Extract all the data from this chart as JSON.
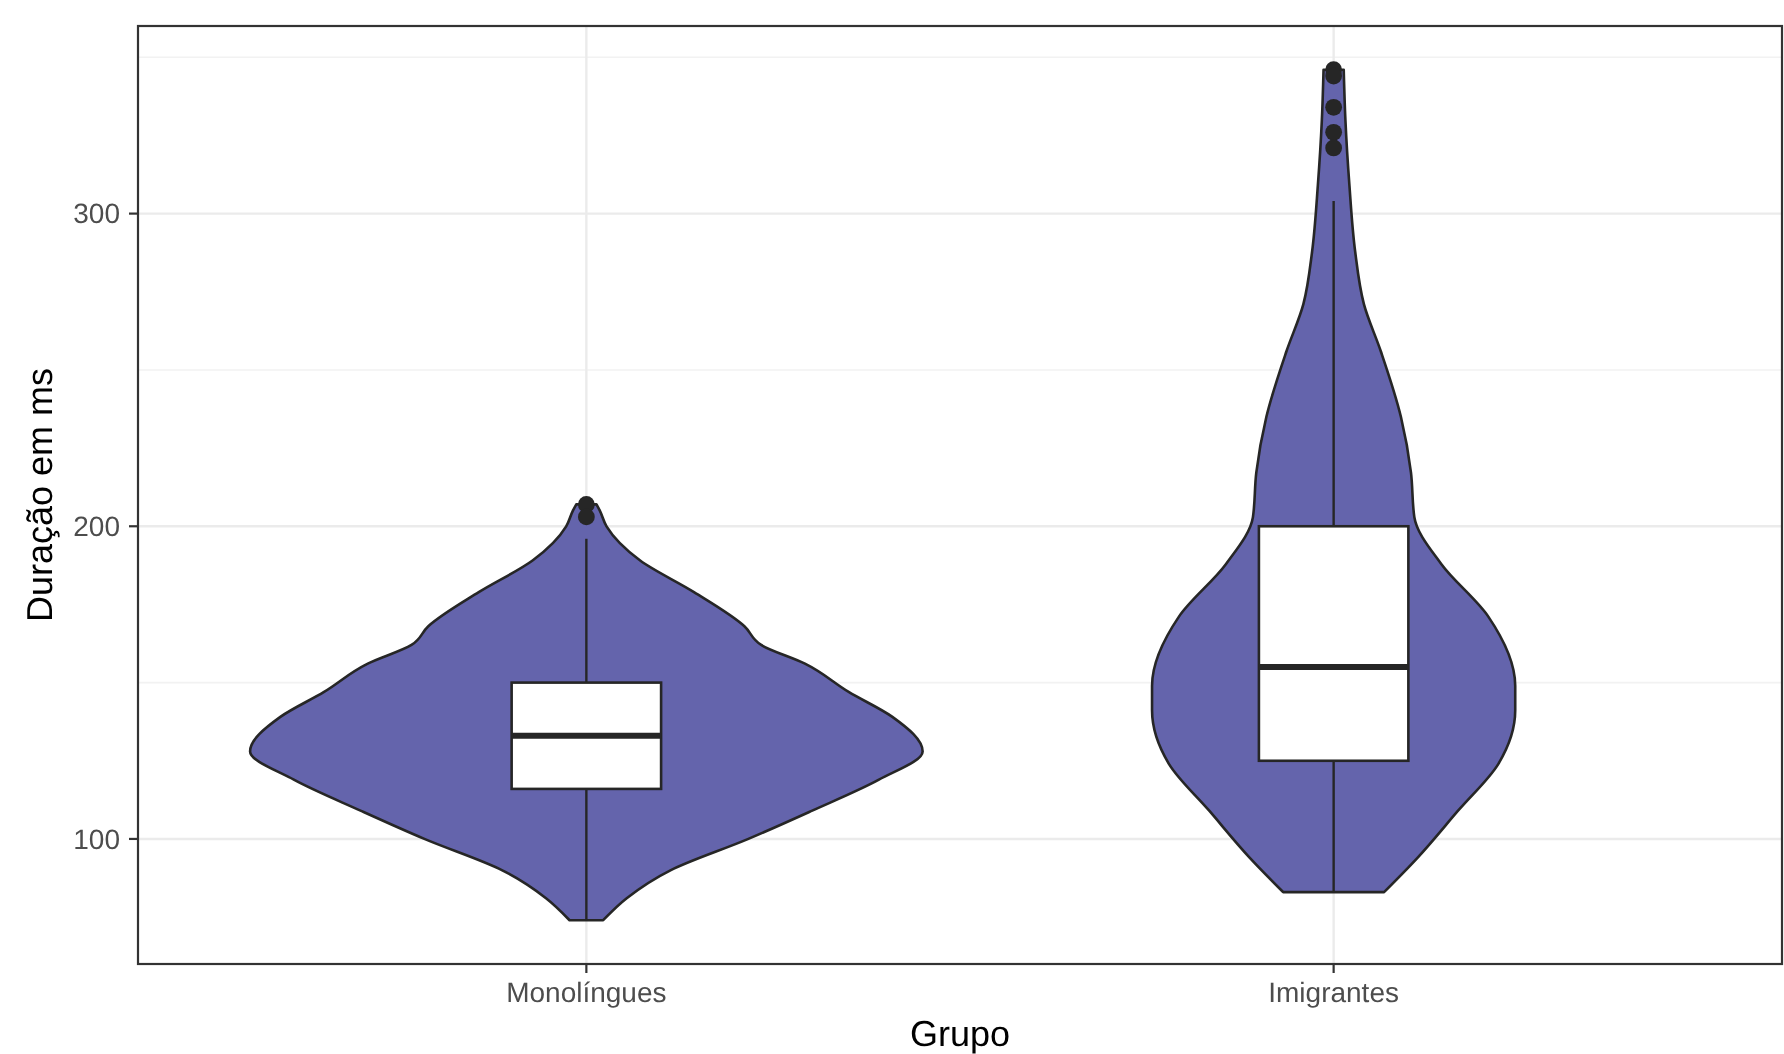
{
  "chart_data": {
    "type": "box",
    "xlabel": "Grupo",
    "ylabel": "Duração em ms",
    "categories": [
      "Monolíngues",
      "Imigrantes"
    ],
    "ylim": [
      60,
      360
    ],
    "yticks": [
      100,
      {
        "value": 150,
        "label": null
      },
      200,
      {
        "value": 250,
        "label": null
      },
      300,
      {
        "value": 350,
        "label": null
      }
    ],
    "grid": true,
    "color": "#ffffff",
    "boxes": [
      {
        "low": 74,
        "q1": 116,
        "median": 133,
        "q3": 150,
        "high": 196,
        "outliers": [
          207,
          203
        ]
      },
      {
        "low": 83,
        "q1": 125,
        "median": 155,
        "q3": 200,
        "high": 304,
        "outliers": [
          346,
          344,
          334,
          326,
          321
        ]
      }
    ]
  }
}
